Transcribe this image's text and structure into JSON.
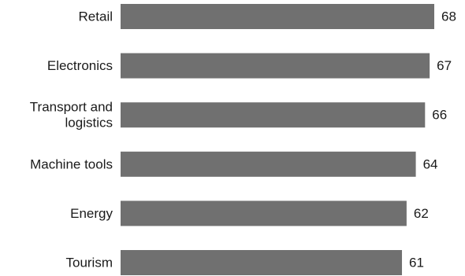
{
  "chart_data": {
    "type": "bar",
    "orientation": "horizontal",
    "categories": [
      [
        "Retail"
      ],
      [
        "Electronics"
      ],
      [
        "Transport and",
        "logistics"
      ],
      [
        "Machine tools"
      ],
      [
        "Energy"
      ],
      [
        "Tourism"
      ]
    ],
    "values": [
      68,
      67,
      66,
      64,
      62,
      61
    ],
    "title": "",
    "xlabel": "",
    "ylabel": "",
    "xlim": [
      0,
      68
    ],
    "grid": false,
    "legend": "none",
    "bar_color": "#707070",
    "text_color": "#1a1a1a"
  }
}
